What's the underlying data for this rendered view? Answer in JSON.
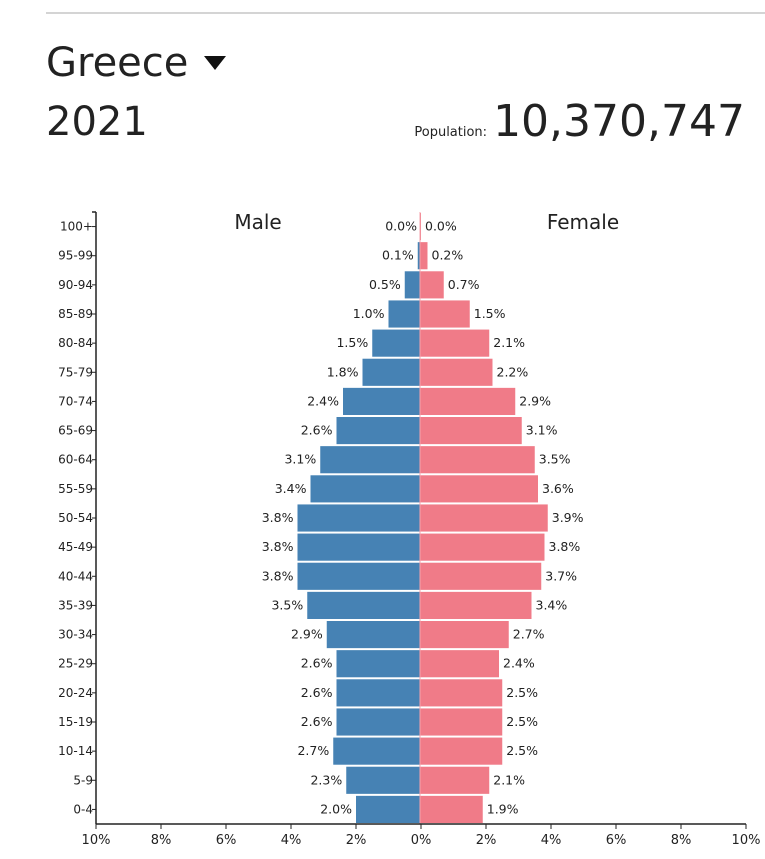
{
  "header": {
    "country": "Greece",
    "year": "2021",
    "population_label": "Population:",
    "population_value": "10,370,747"
  },
  "icons": {
    "dropdown": "caret-down-icon"
  },
  "colors": {
    "male": "#4682b4",
    "female": "#f07b88",
    "axis": "#222222",
    "center_line": "#f5a3ad"
  },
  "chart_data": {
    "type": "bar",
    "orientation": "horizontal",
    "title": "",
    "subtitle": "",
    "categories": [
      "100+",
      "95-99",
      "90-94",
      "85-89",
      "80-84",
      "75-79",
      "70-74",
      "65-69",
      "60-64",
      "55-59",
      "50-54",
      "45-49",
      "40-44",
      "35-39",
      "30-34",
      "25-29",
      "20-24",
      "15-19",
      "10-14",
      "5-9",
      "0-4"
    ],
    "series": [
      {
        "name": "Male",
        "values": [
          0.0,
          0.1,
          0.5,
          1.0,
          1.5,
          1.8,
          2.4,
          2.6,
          3.1,
          3.4,
          3.8,
          3.8,
          3.8,
          3.5,
          2.9,
          2.6,
          2.6,
          2.6,
          2.7,
          2.3,
          2.0
        ],
        "value_labels": [
          "0.0%",
          "0.1%",
          "0.5%",
          "1.0%",
          "1.5%",
          "1.8%",
          "2.4%",
          "2.6%",
          "3.1%",
          "3.4%",
          "3.8%",
          "3.8%",
          "3.8%",
          "3.5%",
          "2.9%",
          "2.6%",
          "2.6%",
          "2.6%",
          "2.7%",
          "2.3%",
          "2.0%"
        ]
      },
      {
        "name": "Female",
        "values": [
          0.0,
          0.2,
          0.7,
          1.5,
          2.1,
          2.2,
          2.9,
          3.1,
          3.5,
          3.6,
          3.9,
          3.8,
          3.7,
          3.4,
          2.7,
          2.4,
          2.5,
          2.5,
          2.5,
          2.1,
          1.9
        ],
        "value_labels": [
          "0.0%",
          "0.2%",
          "0.7%",
          "1.5%",
          "2.1%",
          "2.2%",
          "2.9%",
          "3.1%",
          "3.5%",
          "3.6%",
          "3.9%",
          "3.8%",
          "3.7%",
          "3.4%",
          "2.7%",
          "2.4%",
          "2.5%",
          "2.5%",
          "2.5%",
          "2.1%",
          "1.9%"
        ]
      }
    ],
    "xlim": [
      -10,
      10
    ],
    "xticks": [
      -10,
      -8,
      -6,
      -4,
      -2,
      0,
      2,
      4,
      6,
      8,
      10
    ],
    "xtick_labels": [
      "10%",
      "8%",
      "6%",
      "4%",
      "2%",
      "0%",
      "2%",
      "4%",
      "6%",
      "8%",
      "10%"
    ],
    "grid": false,
    "legend": "top"
  }
}
